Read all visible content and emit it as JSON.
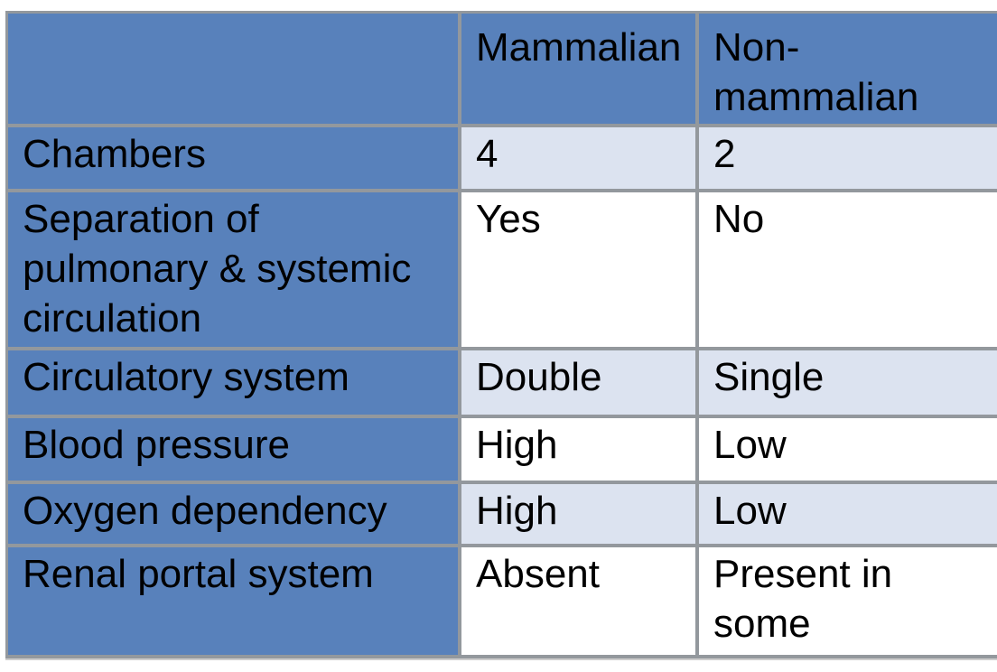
{
  "title": "Mammalian vs non-mammalian circulatory system comparison table",
  "colors": {
    "header_blue": "#5881BB",
    "band_light": "#DCE3F0",
    "band_white": "#FFFFFF",
    "border_gray": "#93989D",
    "shadow_gray": "#CDCDCD",
    "text": "#000000"
  },
  "chart_data": {
    "type": "table",
    "title": "",
    "columns": [
      "",
      "Mammalian",
      "Non-mammalian"
    ],
    "rows": [
      [
        "Chambers",
        "4",
        "2"
      ],
      [
        "Separation of pulmonary & systemic circulation",
        "Yes",
        "No"
      ],
      [
        "Circulatory system",
        "Double",
        "Single"
      ],
      [
        "Blood pressure",
        "High",
        "Low"
      ],
      [
        "Oxygen dependency",
        "High",
        "Low"
      ],
      [
        "Renal portal system",
        "Absent",
        "Present in some"
      ]
    ],
    "layout_hints": {
      "header_fill": "#5881BB",
      "row_label_fill": "#5881BB",
      "banded_rows": "odd rows light blue, even rows white",
      "grid": "gray borders, no right outer border (clipped at image edge)"
    }
  }
}
